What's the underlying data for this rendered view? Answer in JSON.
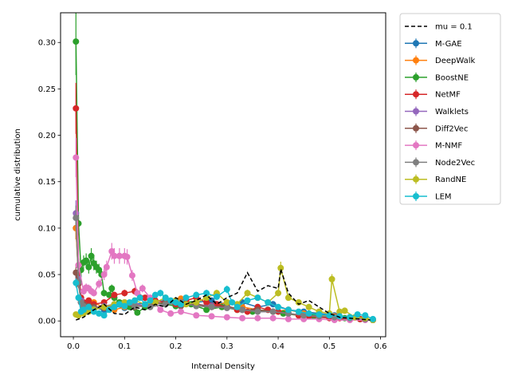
{
  "chart_data": {
    "type": "line",
    "xlabel": "Internal Density",
    "ylabel": "cumulative distribution",
    "xlim": [
      -0.025,
      0.61
    ],
    "ylim": [
      -0.017,
      0.332
    ],
    "xticks": [
      0.0,
      0.1,
      0.2,
      0.3,
      0.4,
      0.5,
      0.6
    ],
    "xtick_labels": [
      "0.0",
      "0.1",
      "0.2",
      "0.3",
      "0.4",
      "0.5",
      "0.6"
    ],
    "yticks": [
      0.0,
      0.05,
      0.1,
      0.15,
      0.2,
      0.25,
      0.3
    ],
    "ytick_labels": [
      "0.00",
      "0.05",
      "0.10",
      "0.15",
      "0.20",
      "0.25",
      "0.30"
    ],
    "grid": false,
    "legend_position": "outside-right",
    "reference": {
      "name": "mu = 0.1",
      "style": "dashed",
      "color": "#000000",
      "x": [
        0.005,
        0.02,
        0.04,
        0.06,
        0.08,
        0.1,
        0.12,
        0.14,
        0.16,
        0.18,
        0.2,
        0.22,
        0.24,
        0.26,
        0.28,
        0.3,
        0.32,
        0.34,
        0.36,
        0.38,
        0.4,
        0.405,
        0.42,
        0.44,
        0.46,
        0.48,
        0.5,
        0.52,
        0.54,
        0.56,
        0.58
      ],
      "y": [
        0.001,
        0.004,
        0.012,
        0.018,
        0.008,
        0.007,
        0.015,
        0.012,
        0.018,
        0.015,
        0.025,
        0.018,
        0.022,
        0.028,
        0.018,
        0.025,
        0.03,
        0.052,
        0.032,
        0.038,
        0.035,
        0.056,
        0.03,
        0.018,
        0.022,
        0.015,
        0.008,
        0.004,
        0.003,
        0.002,
        0.001
      ]
    },
    "series": [
      {
        "name": "M-GAE",
        "color": "#1f77b4",
        "x": [
          0.005,
          0.01,
          0.015,
          0.02,
          0.03,
          0.04,
          0.06,
          0.08,
          0.1,
          0.12,
          0.15,
          0.18,
          0.21,
          0.24,
          0.27,
          0.3,
          0.33,
          0.36,
          0.39,
          0.42,
          0.45,
          0.48,
          0.51,
          0.54,
          0.57,
          0.585
        ],
        "y": [
          0.1,
          0.048,
          0.02,
          0.015,
          0.018,
          0.014,
          0.012,
          0.016,
          0.014,
          0.018,
          0.02,
          0.022,
          0.018,
          0.02,
          0.022,
          0.018,
          0.02,
          0.015,
          0.018,
          0.012,
          0.01,
          0.008,
          0.006,
          0.004,
          0.003,
          0.001
        ]
      },
      {
        "name": "DeepWalk",
        "color": "#ff7f0e",
        "x": [
          0.005,
          0.01,
          0.015,
          0.02,
          0.03,
          0.04,
          0.06,
          0.08,
          0.1,
          0.12,
          0.15,
          0.18,
          0.21,
          0.24,
          0.27,
          0.3,
          0.33,
          0.36,
          0.39,
          0.42,
          0.45,
          0.48,
          0.51,
          0.54,
          0.57,
          0.585
        ],
        "y": [
          0.1,
          0.045,
          0.022,
          0.018,
          0.016,
          0.02,
          0.014,
          0.012,
          0.015,
          0.016,
          0.018,
          0.02,
          0.024,
          0.018,
          0.016,
          0.02,
          0.015,
          0.012,
          0.01,
          0.012,
          0.008,
          0.006,
          0.005,
          0.004,
          0.002,
          0.001
        ]
      },
      {
        "name": "BoostNE",
        "color": "#2ca02c",
        "x": [
          0.005,
          0.01,
          0.015,
          0.02,
          0.025,
          0.03,
          0.035,
          0.04,
          0.045,
          0.05,
          0.055,
          0.06,
          0.07,
          0.075,
          0.08,
          0.09,
          0.1,
          0.11,
          0.125,
          0.14,
          0.16,
          0.18,
          0.2,
          0.23,
          0.26,
          0.29,
          0.32,
          0.35,
          0.38,
          0.41,
          0.44,
          0.47,
          0.5,
          0.53,
          0.56,
          0.585
        ],
        "y": [
          0.301,
          0.105,
          0.055,
          0.063,
          0.065,
          0.058,
          0.07,
          0.062,
          0.058,
          0.055,
          0.05,
          0.03,
          0.028,
          0.035,
          0.025,
          0.02,
          0.018,
          0.015,
          0.009,
          0.015,
          0.02,
          0.018,
          0.016,
          0.018,
          0.012,
          0.015,
          0.012,
          0.01,
          0.012,
          0.008,
          0.006,
          0.005,
          0.004,
          0.003,
          0.002,
          0.001
        ]
      },
      {
        "name": "NetMF",
        "color": "#d62728",
        "x": [
          0.005,
          0.01,
          0.015,
          0.02,
          0.03,
          0.04,
          0.06,
          0.08,
          0.1,
          0.12,
          0.14,
          0.16,
          0.18,
          0.2,
          0.22,
          0.24,
          0.26,
          0.28,
          0.3,
          0.32,
          0.34,
          0.36,
          0.38,
          0.4,
          0.42,
          0.44,
          0.46,
          0.48,
          0.5,
          0.52,
          0.54,
          0.56,
          0.585
        ],
        "y": [
          0.229,
          0.06,
          0.025,
          0.02,
          0.022,
          0.018,
          0.02,
          0.028,
          0.03,
          0.032,
          0.025,
          0.022,
          0.02,
          0.018,
          0.022,
          0.025,
          0.02,
          0.018,
          0.015,
          0.012,
          0.01,
          0.015,
          0.012,
          0.01,
          0.008,
          0.006,
          0.005,
          0.004,
          0.003,
          0.003,
          0.002,
          0.002,
          0.001
        ]
      },
      {
        "name": "Walklets",
        "color": "#9467bd",
        "x": [
          0.005,
          0.01,
          0.015,
          0.02,
          0.03,
          0.04,
          0.06,
          0.08,
          0.1,
          0.12,
          0.15,
          0.18,
          0.21,
          0.24,
          0.27,
          0.3,
          0.33,
          0.36,
          0.39,
          0.42,
          0.45,
          0.48,
          0.51,
          0.54,
          0.57,
          0.585
        ],
        "y": [
          0.116,
          0.045,
          0.022,
          0.018,
          0.015,
          0.014,
          0.016,
          0.018,
          0.02,
          0.018,
          0.016,
          0.018,
          0.02,
          0.018,
          0.016,
          0.014,
          0.012,
          0.01,
          0.01,
          0.008,
          0.006,
          0.005,
          0.004,
          0.003,
          0.002,
          0.001
        ]
      },
      {
        "name": "Diff2Vec",
        "color": "#8c564b",
        "x": [
          0.005,
          0.01,
          0.015,
          0.02,
          0.03,
          0.04,
          0.06,
          0.08,
          0.1,
          0.12,
          0.15,
          0.18,
          0.21,
          0.24,
          0.27,
          0.3,
          0.33,
          0.36,
          0.39,
          0.42,
          0.45,
          0.48,
          0.51,
          0.54,
          0.57,
          0.585
        ],
        "y": [
          0.052,
          0.04,
          0.02,
          0.018,
          0.016,
          0.015,
          0.014,
          0.016,
          0.018,
          0.015,
          0.018,
          0.02,
          0.016,
          0.018,
          0.015,
          0.016,
          0.012,
          0.012,
          0.01,
          0.008,
          0.006,
          0.005,
          0.004,
          0.003,
          0.002,
          0.001
        ]
      },
      {
        "name": "M-NMF",
        "color": "#e377c2",
        "x": [
          0.005,
          0.01,
          0.02,
          0.025,
          0.03,
          0.035,
          0.04,
          0.05,
          0.06,
          0.065,
          0.075,
          0.08,
          0.09,
          0.1,
          0.105,
          0.115,
          0.125,
          0.135,
          0.15,
          0.17,
          0.19,
          0.21,
          0.24,
          0.27,
          0.3,
          0.33,
          0.36,
          0.39,
          0.42,
          0.45,
          0.48,
          0.51,
          0.54,
          0.57,
          0.585
        ],
        "y": [
          0.176,
          0.06,
          0.032,
          0.036,
          0.035,
          0.032,
          0.03,
          0.04,
          0.05,
          0.058,
          0.075,
          0.07,
          0.07,
          0.07,
          0.069,
          0.049,
          0.03,
          0.035,
          0.025,
          0.012,
          0.008,
          0.01,
          0.006,
          0.005,
          0.004,
          0.003,
          0.003,
          0.003,
          0.002,
          0.002,
          0.002,
          0.001,
          0.001,
          0.001,
          0.001
        ]
      },
      {
        "name": "Node2Vec",
        "color": "#7f7f7f",
        "x": [
          0.005,
          0.01,
          0.015,
          0.02,
          0.03,
          0.04,
          0.06,
          0.08,
          0.1,
          0.12,
          0.15,
          0.18,
          0.21,
          0.24,
          0.27,
          0.3,
          0.33,
          0.36,
          0.39,
          0.42,
          0.45,
          0.48,
          0.51,
          0.54,
          0.57,
          0.585
        ],
        "y": [
          0.111,
          0.042,
          0.02,
          0.016,
          0.014,
          0.013,
          0.015,
          0.016,
          0.018,
          0.016,
          0.015,
          0.018,
          0.02,
          0.016,
          0.015,
          0.014,
          0.012,
          0.01,
          0.01,
          0.008,
          0.006,
          0.005,
          0.004,
          0.003,
          0.002,
          0.001
        ]
      },
      {
        "name": "RandNE",
        "color": "#bcbd22",
        "x": [
          0.005,
          0.01,
          0.02,
          0.03,
          0.04,
          0.06,
          0.08,
          0.1,
          0.12,
          0.14,
          0.16,
          0.18,
          0.2,
          0.22,
          0.24,
          0.26,
          0.28,
          0.3,
          0.32,
          0.34,
          0.36,
          0.38,
          0.4,
          0.405,
          0.42,
          0.44,
          0.46,
          0.48,
          0.5,
          0.505,
          0.52,
          0.53,
          0.55,
          0.57,
          0.585
        ],
        "y": [
          0.007,
          0.006,
          0.008,
          0.01,
          0.012,
          0.015,
          0.018,
          0.02,
          0.022,
          0.018,
          0.02,
          0.025,
          0.022,
          0.018,
          0.02,
          0.025,
          0.03,
          0.02,
          0.018,
          0.03,
          0.025,
          0.02,
          0.03,
          0.057,
          0.025,
          0.02,
          0.015,
          0.01,
          0.008,
          0.045,
          0.01,
          0.011,
          0.004,
          0.003,
          0.001
        ]
      },
      {
        "name": "LEM",
        "color": "#17becf",
        "x": [
          0.005,
          0.01,
          0.015,
          0.02,
          0.03,
          0.04,
          0.05,
          0.06,
          0.07,
          0.08,
          0.09,
          0.1,
          0.11,
          0.12,
          0.13,
          0.14,
          0.15,
          0.16,
          0.17,
          0.18,
          0.19,
          0.2,
          0.21,
          0.22,
          0.24,
          0.26,
          0.28,
          0.3,
          0.31,
          0.32,
          0.34,
          0.36,
          0.38,
          0.4,
          0.42,
          0.44,
          0.46,
          0.48,
          0.5,
          0.52,
          0.54,
          0.555,
          0.57,
          0.585
        ],
        "y": [
          0.041,
          0.025,
          0.01,
          0.012,
          0.015,
          0.01,
          0.008,
          0.006,
          0.012,
          0.015,
          0.018,
          0.016,
          0.02,
          0.022,
          0.025,
          0.018,
          0.022,
          0.028,
          0.03,
          0.025,
          0.022,
          0.02,
          0.018,
          0.025,
          0.028,
          0.03,
          0.026,
          0.034,
          0.02,
          0.015,
          0.022,
          0.025,
          0.02,
          0.015,
          0.012,
          0.01,
          0.008,
          0.007,
          0.006,
          0.005,
          0.004,
          0.007,
          0.006,
          0.002
        ]
      }
    ]
  }
}
